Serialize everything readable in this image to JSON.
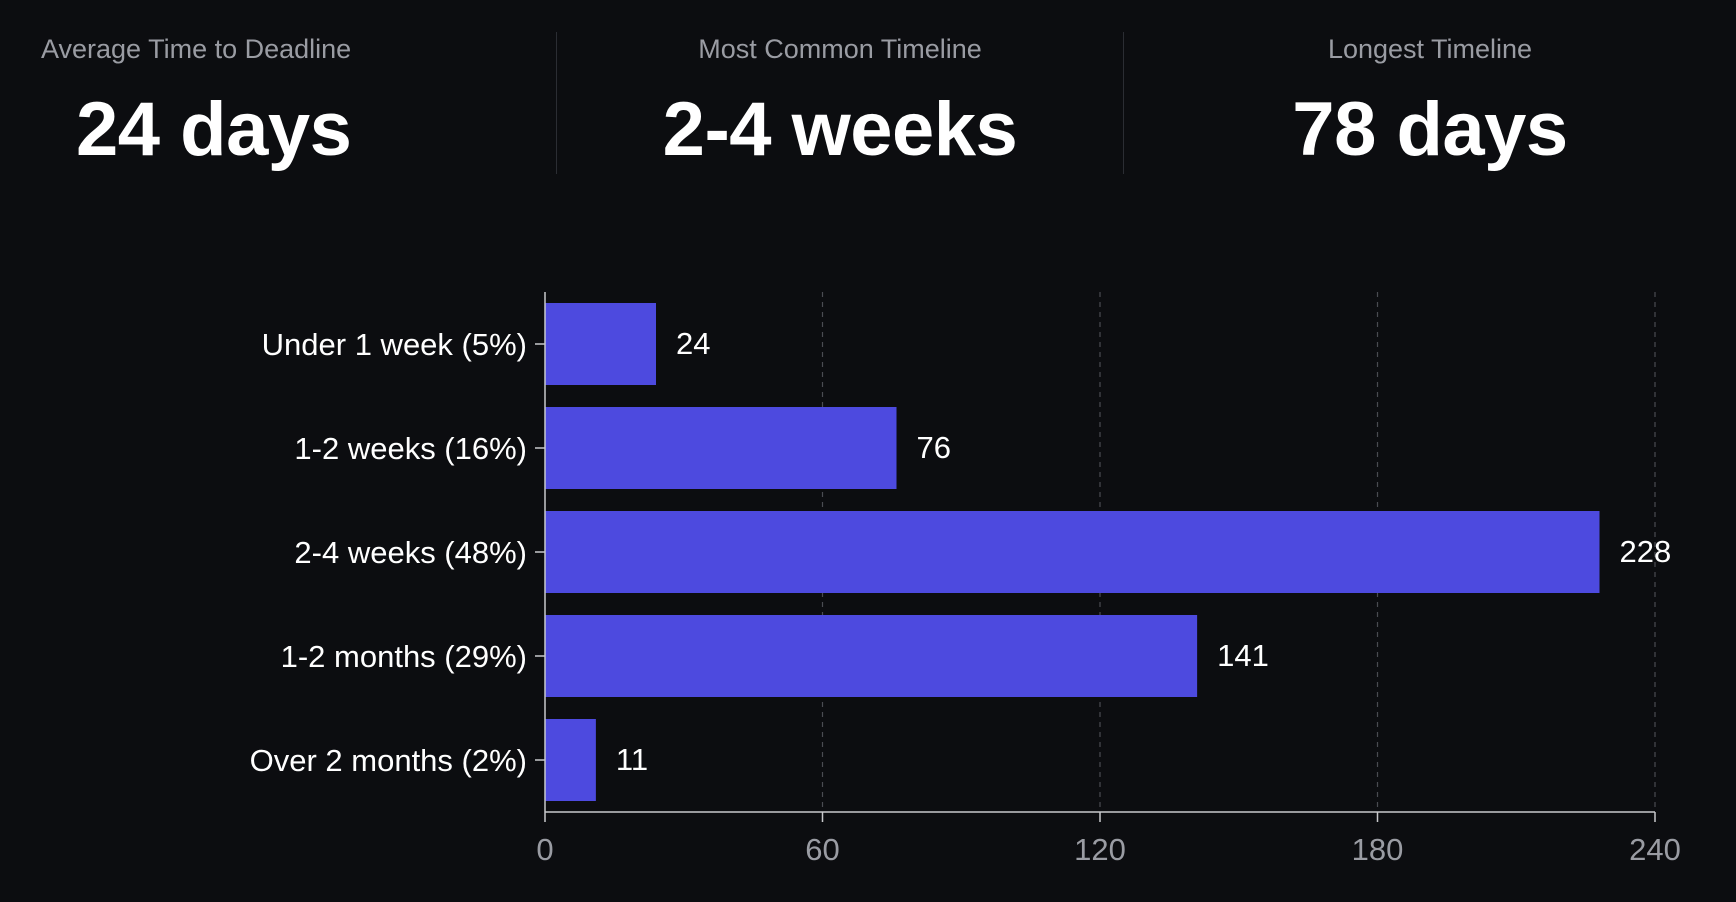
{
  "stats": [
    {
      "label": "Average Time to Deadline",
      "value": "24 days"
    },
    {
      "label": "Most Common Timeline",
      "value": "2-4 weeks"
    },
    {
      "label": "Longest Timeline",
      "value": "78 days"
    }
  ],
  "colors": {
    "background": "#0c0d10",
    "bar": "#4d4adf",
    "label": "#ffffff",
    "muted": "#9a9ca3",
    "grid": "#4a4c52",
    "axis": "#c8c9cc"
  },
  "chart_data": {
    "type": "bar",
    "orientation": "horizontal",
    "categories": [
      "Under 1 week (5%)",
      "1-2 weeks (16%)",
      "2-4 weeks (48%)",
      "1-2 months (29%)",
      "Over 2 months (2%)"
    ],
    "values": [
      24,
      76,
      228,
      141,
      11
    ],
    "xlim": [
      0,
      240
    ],
    "xticks": [
      "0",
      "60",
      "120",
      "180",
      "240"
    ],
    "xtick_values": [
      0,
      60,
      120,
      180,
      240
    ],
    "grid": "vertical dashed",
    "data_labels": [
      "24",
      "76",
      "228",
      "141",
      "11"
    ]
  }
}
